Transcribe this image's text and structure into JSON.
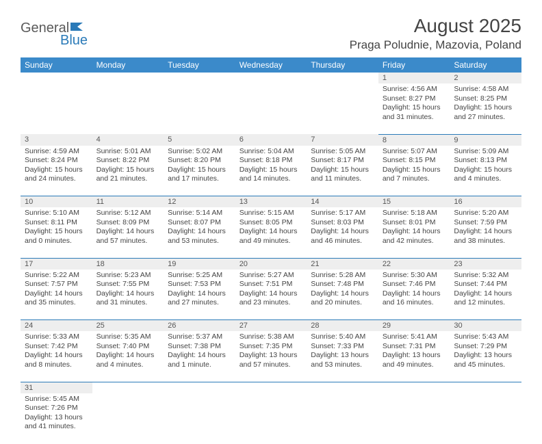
{
  "logo": {
    "text1": "General",
    "text2": "Blue"
  },
  "title": "August 2025",
  "location": "Praga Poludnie, Mazovia, Poland",
  "colors": {
    "header_bg": "#3b8aca",
    "header_text": "#ffffff",
    "border": "#2a7ab8",
    "daynum_bg": "#eeeeee",
    "logo_gray": "#5a5a5a",
    "logo_blue": "#2a7ab8"
  },
  "dayNames": [
    "Sunday",
    "Monday",
    "Tuesday",
    "Wednesday",
    "Thursday",
    "Friday",
    "Saturday"
  ],
  "weeks": [
    [
      null,
      null,
      null,
      null,
      null,
      {
        "n": "1",
        "sr": "4:56 AM",
        "ss": "8:27 PM",
        "dl1": "15 hours",
        "dl2": "and 31 minutes."
      },
      {
        "n": "2",
        "sr": "4:58 AM",
        "ss": "8:25 PM",
        "dl1": "15 hours",
        "dl2": "and 27 minutes."
      }
    ],
    [
      {
        "n": "3",
        "sr": "4:59 AM",
        "ss": "8:24 PM",
        "dl1": "15 hours",
        "dl2": "and 24 minutes."
      },
      {
        "n": "4",
        "sr": "5:01 AM",
        "ss": "8:22 PM",
        "dl1": "15 hours",
        "dl2": "and 21 minutes."
      },
      {
        "n": "5",
        "sr": "5:02 AM",
        "ss": "8:20 PM",
        "dl1": "15 hours",
        "dl2": "and 17 minutes."
      },
      {
        "n": "6",
        "sr": "5:04 AM",
        "ss": "8:18 PM",
        "dl1": "15 hours",
        "dl2": "and 14 minutes."
      },
      {
        "n": "7",
        "sr": "5:05 AM",
        "ss": "8:17 PM",
        "dl1": "15 hours",
        "dl2": "and 11 minutes."
      },
      {
        "n": "8",
        "sr": "5:07 AM",
        "ss": "8:15 PM",
        "dl1": "15 hours",
        "dl2": "and 7 minutes."
      },
      {
        "n": "9",
        "sr": "5:09 AM",
        "ss": "8:13 PM",
        "dl1": "15 hours",
        "dl2": "and 4 minutes."
      }
    ],
    [
      {
        "n": "10",
        "sr": "5:10 AM",
        "ss": "8:11 PM",
        "dl1": "15 hours",
        "dl2": "and 0 minutes."
      },
      {
        "n": "11",
        "sr": "5:12 AM",
        "ss": "8:09 PM",
        "dl1": "14 hours",
        "dl2": "and 57 minutes."
      },
      {
        "n": "12",
        "sr": "5:14 AM",
        "ss": "8:07 PM",
        "dl1": "14 hours",
        "dl2": "and 53 minutes."
      },
      {
        "n": "13",
        "sr": "5:15 AM",
        "ss": "8:05 PM",
        "dl1": "14 hours",
        "dl2": "and 49 minutes."
      },
      {
        "n": "14",
        "sr": "5:17 AM",
        "ss": "8:03 PM",
        "dl1": "14 hours",
        "dl2": "and 46 minutes."
      },
      {
        "n": "15",
        "sr": "5:18 AM",
        "ss": "8:01 PM",
        "dl1": "14 hours",
        "dl2": "and 42 minutes."
      },
      {
        "n": "16",
        "sr": "5:20 AM",
        "ss": "7:59 PM",
        "dl1": "14 hours",
        "dl2": "and 38 minutes."
      }
    ],
    [
      {
        "n": "17",
        "sr": "5:22 AM",
        "ss": "7:57 PM",
        "dl1": "14 hours",
        "dl2": "and 35 minutes."
      },
      {
        "n": "18",
        "sr": "5:23 AM",
        "ss": "7:55 PM",
        "dl1": "14 hours",
        "dl2": "and 31 minutes."
      },
      {
        "n": "19",
        "sr": "5:25 AM",
        "ss": "7:53 PM",
        "dl1": "14 hours",
        "dl2": "and 27 minutes."
      },
      {
        "n": "20",
        "sr": "5:27 AM",
        "ss": "7:51 PM",
        "dl1": "14 hours",
        "dl2": "and 23 minutes."
      },
      {
        "n": "21",
        "sr": "5:28 AM",
        "ss": "7:48 PM",
        "dl1": "14 hours",
        "dl2": "and 20 minutes."
      },
      {
        "n": "22",
        "sr": "5:30 AM",
        "ss": "7:46 PM",
        "dl1": "14 hours",
        "dl2": "and 16 minutes."
      },
      {
        "n": "23",
        "sr": "5:32 AM",
        "ss": "7:44 PM",
        "dl1": "14 hours",
        "dl2": "and 12 minutes."
      }
    ],
    [
      {
        "n": "24",
        "sr": "5:33 AM",
        "ss": "7:42 PM",
        "dl1": "14 hours",
        "dl2": "and 8 minutes."
      },
      {
        "n": "25",
        "sr": "5:35 AM",
        "ss": "7:40 PM",
        "dl1": "14 hours",
        "dl2": "and 4 minutes."
      },
      {
        "n": "26",
        "sr": "5:37 AM",
        "ss": "7:38 PM",
        "dl1": "14 hours",
        "dl2": "and 1 minute."
      },
      {
        "n": "27",
        "sr": "5:38 AM",
        "ss": "7:35 PM",
        "dl1": "13 hours",
        "dl2": "and 57 minutes."
      },
      {
        "n": "28",
        "sr": "5:40 AM",
        "ss": "7:33 PM",
        "dl1": "13 hours",
        "dl2": "and 53 minutes."
      },
      {
        "n": "29",
        "sr": "5:41 AM",
        "ss": "7:31 PM",
        "dl1": "13 hours",
        "dl2": "and 49 minutes."
      },
      {
        "n": "30",
        "sr": "5:43 AM",
        "ss": "7:29 PM",
        "dl1": "13 hours",
        "dl2": "and 45 minutes."
      }
    ],
    [
      {
        "n": "31",
        "sr": "5:45 AM",
        "ss": "7:26 PM",
        "dl1": "13 hours",
        "dl2": "and 41 minutes."
      },
      null,
      null,
      null,
      null,
      null,
      null
    ]
  ],
  "labels": {
    "sunrise": "Sunrise: ",
    "sunset": "Sunset: ",
    "daylight": "Daylight: "
  }
}
